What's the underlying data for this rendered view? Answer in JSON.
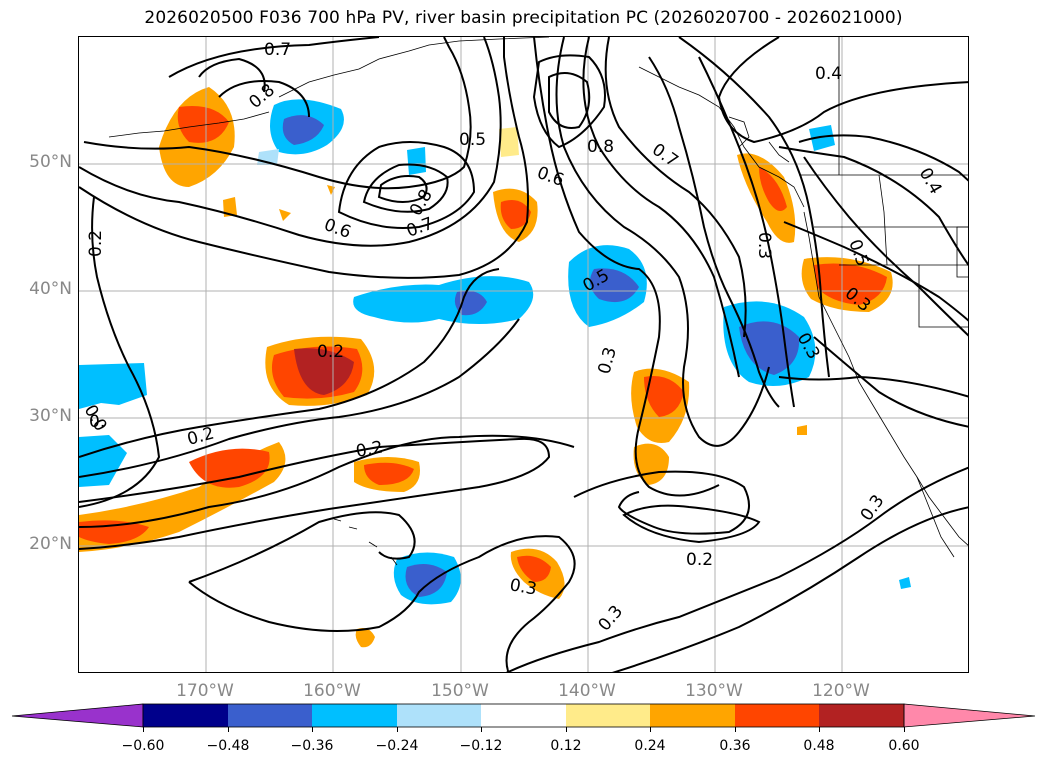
{
  "title": "2026020500 F036 700 hPa PV, river basin precipitation PC (2026020700 - 2026021000)",
  "lat_labels": [
    "50°N",
    "40°N",
    "30°N",
    "20°N"
  ],
  "lon_labels": [
    "170°W",
    "160°W",
    "150°W",
    "140°W",
    "130°W",
    "120°W"
  ],
  "colorbar": {
    "ticks": [
      "−0.60",
      "−0.48",
      "−0.36",
      "−0.24",
      "−0.12",
      "0.12",
      "0.24",
      "0.36",
      "0.48",
      "0.60"
    ],
    "colors": {
      "under": "#9932cc",
      "bins": [
        "#00008b",
        "#3a5fcd",
        "#00bfff",
        "#aee1fa",
        "#ffffff",
        "#ffeb8a",
        "#ffa500",
        "#ff4500",
        "#b22222"
      ],
      "over": "#ff88aa"
    }
  },
  "contour_labels": [
    "0.7",
    "0.8",
    "0.5",
    "0.8",
    "0.7",
    "0.4",
    "0.6",
    "0.6",
    "0.8",
    "0.7",
    "0.2",
    "0.5",
    "0.3",
    "0.4",
    "0.5",
    "0.3",
    "0.2",
    "0.3",
    "0.2",
    "0.2",
    "0.3",
    "0.3",
    "0.2",
    "0.3",
    "0.3",
    "0.0",
    "0."
  ]
}
